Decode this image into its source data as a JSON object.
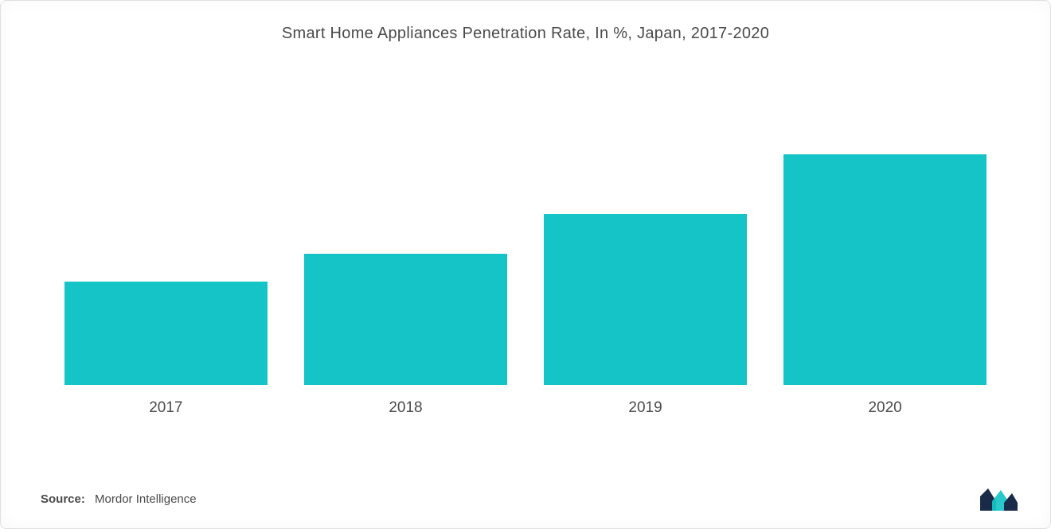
{
  "chart": {
    "type": "bar",
    "title": "Smart Home Appliances Penetration Rate, In %, Japan, 2017-2020",
    "title_fontsize": 20,
    "title_color": "#4a4a4a",
    "categories": [
      "2017",
      "2018",
      "2019",
      "2020"
    ],
    "values": [
      130,
      165,
      215,
      290
    ],
    "value_max_display": 390,
    "bar_colors": [
      "#15c4c6",
      "#15c4c6",
      "#15c4c6",
      "#15c4c6"
    ],
    "bar_width_pct": 22,
    "background_color": "#ffffff",
    "border_color": "#e0e0e0",
    "xlabel_fontsize": 19,
    "xlabel_color": "#4a4a4a"
  },
  "source": {
    "label": "Source:",
    "value": "Mordor Intelligence",
    "fontsize": 15,
    "color": "#4a4a4a"
  },
  "logo": {
    "name": "mordor-logo",
    "colors": {
      "dark": "#1a2b4a",
      "teal": "#15c4c6"
    }
  }
}
